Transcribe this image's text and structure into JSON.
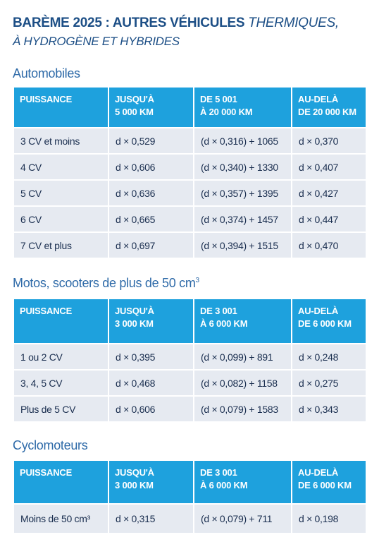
{
  "title": {
    "bold": "BARÈME 2025 : AUTRES VÉHICULES",
    "italic": "THERMIQUES,",
    "line2": "À HYDROGÈNE ET HYBRIDES"
  },
  "sections": [
    {
      "title": "Automobiles",
      "headers": [
        "PUISSANCE",
        "JUSQU'À\n5 000 KM",
        "DE 5 001\nÀ 20 000 KM",
        "AU-DELÀ\nDE 20 000 KM"
      ],
      "rows": [
        [
          "3 CV et moins",
          "d × 0,529",
          "(d × 0,316) + 1065",
          "d × 0,370"
        ],
        [
          "4 CV",
          "d × 0,606",
          "(d × 0,340) + 1330",
          "d × 0,407"
        ],
        [
          "5 CV",
          "d × 0,636",
          "(d × 0,357) + 1395",
          "d × 0,427"
        ],
        [
          "6 CV",
          "d × 0,665",
          "(d × 0,374) + 1457",
          "d × 0,447"
        ],
        [
          "7 CV et plus",
          "d × 0,697",
          "(d × 0,394) + 1515",
          "d × 0,470"
        ]
      ]
    },
    {
      "title": "Motos, scooters de plus de 50 cm",
      "title_sup": "3",
      "headers": [
        "PUISSANCE",
        "JUSQU'À\n3 000 KM",
        "DE 3 001\nÀ 6 000 KM",
        "AU-DELÀ\nDE 6 000 KM"
      ],
      "rows": [
        [
          "1 ou 2 CV",
          "d × 0,395",
          "(d × 0,099) + 891",
          "d × 0,248"
        ],
        [
          "3, 4, 5 CV",
          "d × 0,468",
          "(d × 0,082) + 1158",
          "d × 0,275"
        ],
        [
          "Plus de 5 CV",
          "d × 0,606",
          "(d × 0,079) + 1583",
          "d × 0,343"
        ]
      ]
    },
    {
      "title": "Cyclomoteurs",
      "headers": [
        "PUISSANCE",
        "JUSQU'À\n3 000 KM",
        "DE 3 001\nÀ 6 000 KM",
        "AU-DELÀ\nDE 6 000 KM"
      ],
      "rows": [
        [
          "Moins de 50 cm³",
          "d × 0,315",
          "(d × 0,079) + 711",
          "d × 0,198"
        ]
      ]
    }
  ]
}
